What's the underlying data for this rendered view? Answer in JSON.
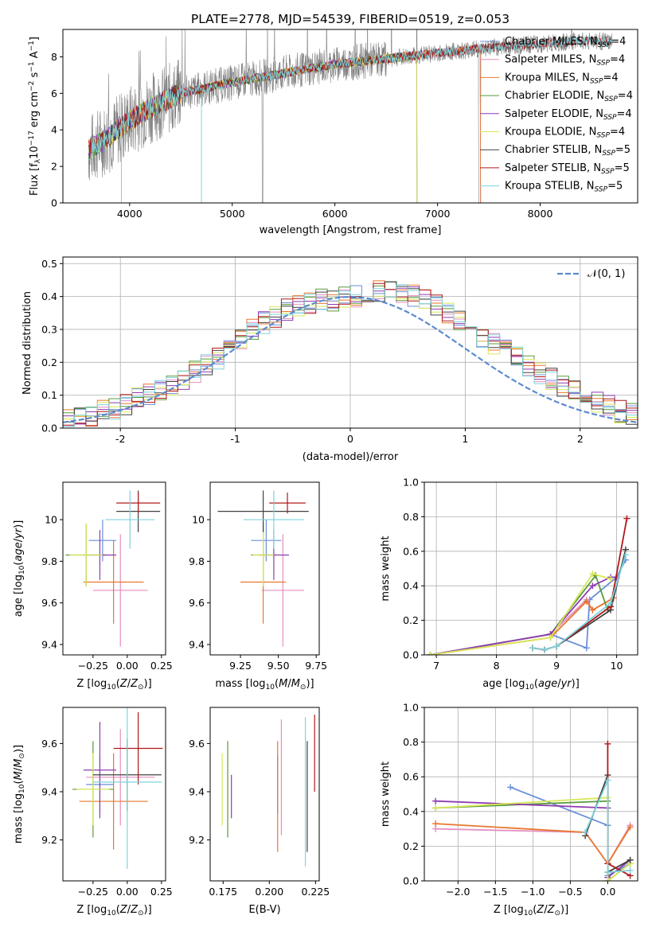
{
  "title": "PLATE=2778, MJD=54539, FIBERID=0519, z=0.053",
  "colors": {
    "Chabrier MILES": "#6a8fd8",
    "Salpeter MILES": "#e48fc0",
    "Kroupa MILES": "#e8772e",
    "Chabrier ELODIE": "#5a9a3a",
    "Salpeter ELODIE": "#8e3bb0",
    "Kroupa ELODIE": "#d8e85a",
    "Chabrier STELIB": "#404040",
    "Salpeter STELIB": "#b01818",
    "Kroupa STELIB": "#7ed3dc",
    "data": "#808080",
    "gaussian": "#5b8ad0"
  },
  "chart_data": [
    {
      "type": "line",
      "title": "PLATE=2778, MJD=54539, FIBERID=0519, z=0.053",
      "xlabel": "wavelength [Angstrom, rest frame]",
      "ylabel": "Flux [f_λ 10^-17 erg cm^-2 s^-1 A^-1]",
      "ylabel_main": "Flux [f",
      "ylabel_sub": "λ",
      "ylabel_main2": "10",
      "ylabel_sup1": "−17",
      "ylabel_main3": " erg cm",
      "ylabel_sup2": "−2",
      "ylabel_main4": " s",
      "ylabel_sup3": "−1",
      "ylabel_main5": " A",
      "ylabel_sup4": "−1",
      "ylabel_end": "]",
      "xlim": [
        3350,
        8950
      ],
      "ylim": [
        0,
        9.5
      ],
      "xticks": [
        4000,
        5000,
        6000,
        7000,
        8000
      ],
      "yticks": [
        0,
        2,
        4,
        6,
        8
      ],
      "legend_loc": "upper right",
      "legend": [
        {
          "name": "Chabrier MILES, N",
          "sub": "SSP",
          "n": "=4"
        },
        {
          "name": "Salpeter MILES, N",
          "sub": "SSP",
          "n": "=4"
        },
        {
          "name": "Kroupa MILES, N",
          "sub": "SSP",
          "n": "=4"
        },
        {
          "name": "Chabrier ELODIE, N",
          "sub": "SSP",
          "n": "=4"
        },
        {
          "name": "Salpeter ELODIE, N",
          "sub": "SSP",
          "n": "=4"
        },
        {
          "name": "Kroupa ELODIE, N",
          "sub": "SSP",
          "n": "=4"
        },
        {
          "name": "Chabrier STELIB, N",
          "sub": "SSP",
          "n": "=5"
        },
        {
          "name": "Salpeter STELIB, N",
          "sub": "SSP",
          "n": "=5"
        },
        {
          "name": "Kroupa STELIB, N",
          "sub": "SSP",
          "n": "=5"
        }
      ],
      "continuum": [
        [
          3600,
          2.9
        ],
        [
          3800,
          3.6
        ],
        [
          4000,
          4.5
        ],
        [
          4200,
          5.2
        ],
        [
          4500,
          6.0
        ],
        [
          5000,
          6.6
        ],
        [
          5500,
          7.1
        ],
        [
          6000,
          7.6
        ],
        [
          6500,
          7.9
        ],
        [
          7000,
          8.2
        ],
        [
          7500,
          8.5
        ],
        [
          8000,
          8.7
        ],
        [
          8500,
          8.9
        ],
        [
          8700,
          8.8
        ]
      ]
    },
    {
      "type": "histogram",
      "xlabel": "(data-model)/error",
      "ylabel": "Normed distribution",
      "xlim": [
        -2.5,
        2.5
      ],
      "ylim": [
        0,
        0.52
      ],
      "xticks": [
        -2,
        -1,
        0,
        1,
        2
      ],
      "yticks": [
        0.0,
        0.1,
        0.2,
        0.3,
        0.4,
        0.5
      ],
      "legend": "𝒩(0, 1)",
      "bins_from": -2.6,
      "bin_width": 0.1,
      "series_base": [
        0.02,
        0.03,
        0.03,
        0.04,
        0.05,
        0.06,
        0.07,
        0.09,
        0.1,
        0.12,
        0.13,
        0.15,
        0.17,
        0.19,
        0.21,
        0.24,
        0.27,
        0.3,
        0.32,
        0.34,
        0.36,
        0.37,
        0.38,
        0.39,
        0.39,
        0.4,
        0.4,
        0.41,
        0.42,
        0.42,
        0.41,
        0.4,
        0.39,
        0.37,
        0.35,
        0.33,
        0.3,
        0.28,
        0.26,
        0.24,
        0.22,
        0.19,
        0.17,
        0.15,
        0.13,
        0.11,
        0.1,
        0.08,
        0.07,
        0.05,
        0.04,
        0.03
      ]
    },
    {
      "type": "scatter",
      "xlabel": "Z [log10(Z/Z⊙)]",
      "ylabel": "age  [log10(age/yr)]",
      "xlim": [
        -0.47,
        0.28
      ],
      "ylim": [
        9.35,
        10.18
      ],
      "xticks": [
        -0.25,
        0.0,
        0.25
      ],
      "xtick_labels": [
        "−0.25",
        "0.00",
        "0.25"
      ],
      "yticks": [
        9.4,
        9.6,
        9.8,
        10.0
      ],
      "points": [
        {
          "model": "Chabrier MILES",
          "x": -0.18,
          "xerr": 0.1,
          "y": 9.9,
          "yerr": 0.1
        },
        {
          "model": "Salpeter MILES",
          "x": -0.05,
          "xerr": 0.2,
          "y": 9.66,
          "yerr": 0.27
        },
        {
          "model": "Kroupa MILES",
          "x": -0.1,
          "xerr": 0.22,
          "y": 9.7,
          "yerr": 0.2
        },
        {
          "model": "Chabrier ELODIE",
          "x": -0.3,
          "xerr": 0.15,
          "y": 9.83,
          "yerr": 0.15
        },
        {
          "model": "Salpeter ELODIE",
          "x": -0.2,
          "xerr": 0.12,
          "y": 9.83,
          "yerr": 0.12
        },
        {
          "model": "Kroupa ELODIE",
          "x": -0.3,
          "xerr": 0.12,
          "y": 9.83,
          "yerr": 0.15
        },
        {
          "model": "Chabrier STELIB",
          "x": 0.08,
          "xerr": 0.16,
          "y": 10.04,
          "yerr": 0.1
        },
        {
          "model": "Salpeter STELIB",
          "x": 0.08,
          "xerr": 0.16,
          "y": 10.08,
          "yerr": 0.05
        },
        {
          "model": "Kroupa STELIB",
          "x": 0.02,
          "xerr": 0.18,
          "y": 10.0,
          "yerr": 0.14
        }
      ]
    },
    {
      "type": "scatter",
      "xlabel": "mass [log10(M/M⊙)]",
      "ylabel": "",
      "xlim": [
        9.05,
        9.77
      ],
      "ylim": [
        9.35,
        10.18
      ],
      "xticks": [
        9.25,
        9.5,
        9.75
      ],
      "xtick_labels": [
        "9.25",
        "9.50",
        "9.75"
      ],
      "yticks": [
        9.4,
        9.6,
        9.8,
        10.0
      ],
      "points": [
        {
          "model": "Chabrier MILES",
          "x": 9.42,
          "xerr": 0.1,
          "y": 9.9,
          "yerr": 0.1
        },
        {
          "model": "Salpeter MILES",
          "x": 9.53,
          "xerr": 0.14,
          "y": 9.66,
          "yerr": 0.27
        },
        {
          "model": "Kroupa MILES",
          "x": 9.4,
          "xerr": 0.15,
          "y": 9.7,
          "yerr": 0.2
        },
        {
          "model": "Chabrier ELODIE",
          "x": 9.4,
          "xerr": 0.08,
          "y": 9.83,
          "yerr": 0.15
        },
        {
          "model": "Salpeter ELODIE",
          "x": 9.47,
          "xerr": 0.1,
          "y": 9.83,
          "yerr": 0.12
        },
        {
          "model": "Kroupa ELODIE",
          "x": 9.4,
          "xerr": 0.07,
          "y": 9.83,
          "yerr": 0.15
        },
        {
          "model": "Chabrier STELIB",
          "x": 9.4,
          "xerr": 0.3,
          "y": 10.04,
          "yerr": 0.1
        },
        {
          "model": "Salpeter STELIB",
          "x": 9.56,
          "xerr": 0.12,
          "y": 10.08,
          "yerr": 0.05
        },
        {
          "model": "Kroupa STELIB",
          "x": 9.47,
          "xerr": 0.2,
          "y": 10.0,
          "yerr": 0.14
        }
      ]
    },
    {
      "type": "line",
      "xlabel": "age  [log10(age/yr)]",
      "ylabel": "mass weight",
      "xlim": [
        6.8,
        10.35
      ],
      "ylim": [
        0,
        1.0
      ],
      "xticks": [
        7,
        8,
        9,
        10
      ],
      "yticks": [
        0.0,
        0.2,
        0.4,
        0.6,
        0.8,
        1.0
      ],
      "series": [
        {
          "model": "Chabrier MILES",
          "x": [
            6.9,
            8.9,
            9.5,
            9.55,
            10.0,
            10.15
          ],
          "y": [
            0.0,
            0.12,
            0.04,
            0.32,
            0.45,
            0.55
          ]
        },
        {
          "model": "Salpeter MILES",
          "x": [
            6.9,
            8.9,
            9.5,
            9.6,
            9.95
          ],
          "y": [
            0.0,
            0.12,
            0.32,
            0.26,
            0.33
          ]
        },
        {
          "model": "Kroupa MILES",
          "x": [
            6.9,
            8.9,
            9.5,
            9.6,
            9.95
          ],
          "y": [
            0.0,
            0.1,
            0.31,
            0.26,
            0.33
          ]
        },
        {
          "model": "Chabrier ELODIE",
          "x": [
            6.9,
            8.9,
            9.65,
            9.85
          ],
          "y": [
            0.0,
            0.12,
            0.46,
            0.26
          ]
        },
        {
          "model": "Salpeter ELODIE",
          "x": [
            6.9,
            8.9,
            9.6,
            9.9,
            10.0
          ],
          "y": [
            0.0,
            0.12,
            0.4,
            0.45,
            0.45
          ]
        },
        {
          "model": "Kroupa ELODIE",
          "x": [
            6.9,
            8.9,
            9.6,
            9.9
          ],
          "y": [
            0.0,
            0.1,
            0.47,
            0.44
          ]
        },
        {
          "model": "Chabrier STELIB",
          "x": [
            8.6,
            8.8,
            9.0,
            9.9,
            10.15
          ],
          "y": [
            0.04,
            0.03,
            0.05,
            0.26,
            0.61
          ]
        },
        {
          "model": "Salpeter STELIB",
          "x": [
            8.6,
            8.8,
            9.0,
            9.9,
            10.17
          ],
          "y": [
            0.04,
            0.03,
            0.05,
            0.28,
            0.79
          ]
        },
        {
          "model": "Kroupa STELIB",
          "x": [
            8.6,
            8.8,
            9.0,
            9.9,
            10.15
          ],
          "y": [
            0.04,
            0.03,
            0.05,
            0.3,
            0.58
          ]
        }
      ]
    },
    {
      "type": "scatter",
      "xlabel": "Z [log10(Z/Z⊙)]",
      "ylabel": "mass [log10(M/M⊙)]",
      "xlim": [
        -0.47,
        0.28
      ],
      "ylim": [
        9.03,
        9.75
      ],
      "xticks": [
        -0.25,
        0.0,
        0.25
      ],
      "xtick_labels": [
        "−0.25",
        "0.00",
        "0.25"
      ],
      "yticks": [
        9.2,
        9.4,
        9.6
      ],
      "points": [
        {
          "model": "Chabrier MILES",
          "x": -0.2,
          "xerr": 0.1,
          "y": 9.43,
          "yerr": 0.12
        },
        {
          "model": "Salpeter MILES",
          "x": -0.05,
          "xerr": 0.25,
          "y": 9.46,
          "yerr": 0.2
        },
        {
          "model": "Kroupa MILES",
          "x": -0.1,
          "xerr": 0.25,
          "y": 9.36,
          "yerr": 0.2
        },
        {
          "model": "Chabrier ELODIE",
          "x": -0.25,
          "xerr": 0.15,
          "y": 9.41,
          "yerr": 0.2
        },
        {
          "model": "Salpeter ELODIE",
          "x": -0.2,
          "xerr": 0.12,
          "y": 9.49,
          "yerr": 0.2
        },
        {
          "model": "Kroupa ELODIE",
          "x": -0.25,
          "xerr": 0.12,
          "y": 9.41,
          "yerr": 0.15
        },
        {
          "model": "Chabrier STELIB",
          "x": 0.0,
          "xerr": 0.25,
          "y": 9.47,
          "yerr": 0.15
        },
        {
          "model": "Salpeter STELIB",
          "x": 0.08,
          "xerr": 0.18,
          "y": 9.58,
          "yerr": 0.15
        },
        {
          "model": "Kroupa STELIB",
          "x": 0.0,
          "xerr": 0.25,
          "y": 9.44,
          "yerr": 0.36
        }
      ]
    },
    {
      "type": "scatter",
      "xlabel": "E(B-V)",
      "ylabel": "",
      "xlim": [
        0.168,
        0.227
      ],
      "ylim": [
        9.03,
        9.75
      ],
      "xticks": [
        0.175,
        0.2,
        0.225
      ],
      "xtick_labels": [
        "0.175",
        "0.200",
        "0.225"
      ],
      "yticks": [
        9.2,
        9.4,
        9.6
      ],
      "points": [
        {
          "model": "Chabrier MILES",
          "x": 0.2045,
          "y": 9.43,
          "yerr": 0.12
        },
        {
          "model": "Salpeter MILES",
          "x": 0.2065,
          "y": 9.46,
          "yerr": 0.24
        },
        {
          "model": "Kroupa MILES",
          "x": 0.2045,
          "y": 9.38,
          "yerr": 0.23
        },
        {
          "model": "Chabrier ELODIE",
          "x": 0.1775,
          "y": 9.41,
          "yerr": 0.2
        },
        {
          "model": "Salpeter ELODIE",
          "x": 0.1795,
          "y": 9.38,
          "yerr": 0.09
        },
        {
          "model": "Kroupa ELODIE",
          "x": 0.1745,
          "y": 9.41,
          "yerr": 0.15
        },
        {
          "model": "Chabrier STELIB",
          "x": 0.2205,
          "y": 9.38,
          "yerr": 0.23
        },
        {
          "model": "Salpeter STELIB",
          "x": 0.2245,
          "y": 9.56,
          "yerr": 0.16
        },
        {
          "model": "Kroupa STELIB",
          "x": 0.2195,
          "y": 9.4,
          "yerr": 0.31
        }
      ]
    },
    {
      "type": "line",
      "xlabel": "Z [log10(Z/Z⊙)]",
      "ylabel": "mass weight",
      "xlim": [
        -2.45,
        0.4
      ],
      "ylim": [
        0,
        1.0
      ],
      "xticks": [
        -2.0,
        -1.5,
        -1.0,
        -0.5,
        0.0
      ],
      "xtick_labels": [
        "−2.0",
        "−1.5",
        "−1.0",
        "−0.5",
        "0.0"
      ],
      "yticks": [
        0.0,
        0.2,
        0.4,
        0.6,
        0.8,
        1.0
      ],
      "series": [
        {
          "model": "Chabrier MILES",
          "x": [
            -1.3,
            0.0,
            0.0,
            0.3
          ],
          "y": [
            0.54,
            0.32,
            0.03,
            0.1
          ]
        },
        {
          "model": "Salpeter MILES",
          "x": [
            -2.3,
            -0.3,
            0.0,
            0.3
          ],
          "y": [
            0.3,
            0.28,
            0.1,
            0.32
          ]
        },
        {
          "model": "Kroupa MILES",
          "x": [
            -2.3,
            -0.3,
            0.0,
            0.3
          ],
          "y": [
            0.33,
            0.28,
            0.1,
            0.31
          ]
        },
        {
          "model": "Chabrier ELODIE",
          "x": [
            -2.3,
            0.0,
            0.0,
            0.3
          ],
          "y": [
            0.42,
            0.46,
            0.0,
            0.1
          ]
        },
        {
          "model": "Salpeter ELODIE",
          "x": [
            -2.3,
            0.0,
            0.0,
            0.3
          ],
          "y": [
            0.46,
            0.42,
            0.02,
            0.12
          ]
        },
        {
          "model": "Kroupa ELODIE",
          "x": [
            -2.3,
            0.0,
            0.0,
            0.3
          ],
          "y": [
            0.42,
            0.48,
            0.0,
            0.1
          ]
        },
        {
          "model": "Chabrier STELIB",
          "x": [
            -0.3,
            0.0,
            0.0,
            0.3
          ],
          "y": [
            0.26,
            0.61,
            0.05,
            0.12
          ]
        },
        {
          "model": "Salpeter STELIB",
          "x": [
            0.0,
            0.0,
            0.3
          ],
          "y": [
            0.79,
            0.1,
            0.03
          ]
        },
        {
          "model": "Kroupa STELIB",
          "x": [
            -0.3,
            0.0,
            0.0,
            0.3
          ],
          "y": [
            0.28,
            0.58,
            0.05,
            0.06
          ]
        }
      ]
    }
  ]
}
